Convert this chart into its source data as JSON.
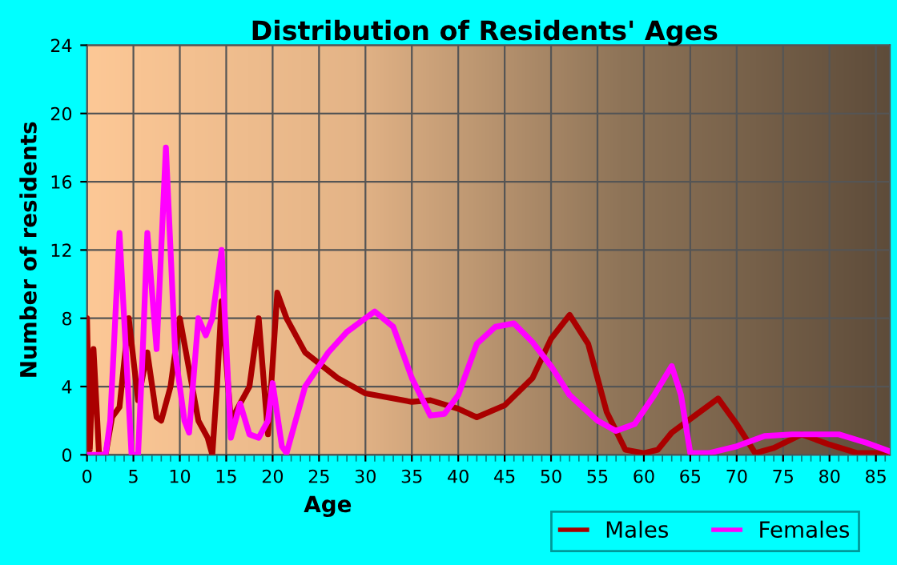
{
  "chart_data": {
    "type": "line",
    "title": "Distribution of Residents' Ages",
    "xlabel": "Age",
    "ylabel": "Number of residents",
    "xlim": [
      0,
      86.5
    ],
    "xticks": [
      0,
      5,
      10,
      15,
      20,
      25,
      30,
      35,
      40,
      45,
      50,
      55,
      60,
      65,
      70,
      75,
      80,
      85
    ],
    "ylim": [
      0,
      24
    ],
    "yticks": [
      0,
      4,
      8,
      12,
      16,
      20,
      24
    ],
    "grid": true,
    "legend": "bottom right",
    "line_style": "solid",
    "series": [
      {
        "name": "Males",
        "color": "#aa0000",
        "x": [
          0,
          0.3,
          0.7,
          1.3,
          2,
          2.7,
          3.5,
          4.5,
          5.5,
          6.5,
          7.5,
          8,
          9,
          10,
          11,
          12,
          13,
          13.5,
          14,
          14.5,
          15.5,
          16.5,
          17.5,
          18.5,
          19.5,
          20.5,
          21.5,
          23.5,
          27,
          30,
          35,
          37,
          40,
          42,
          45,
          48,
          50,
          52,
          54,
          56,
          58,
          60,
          61.5,
          63,
          66,
          68,
          70,
          72,
          74,
          77,
          80,
          83,
          86.5
        ],
        "values": [
          8,
          0.3,
          6.2,
          0,
          0,
          2.2,
          2.8,
          8,
          3.2,
          6,
          2.2,
          2,
          4,
          8,
          5,
          2,
          1,
          0,
          4,
          9,
          2,
          3,
          4,
          8,
          1.2,
          9.5,
          8,
          6,
          4.5,
          3.6,
          3.1,
          3.2,
          2.7,
          2.2,
          2.9,
          4.5,
          6.8,
          8.2,
          6.5,
          2.5,
          0.3,
          0.1,
          0.3,
          1.3,
          2.5,
          3.3,
          1.8,
          0.1,
          0.4,
          1.2,
          0.6,
          0.1,
          0.1
        ]
      },
      {
        "name": "Females",
        "color": "#ff00ff",
        "x": [
          0,
          2,
          2.5,
          3.5,
          4.5,
          4.8,
          5.5,
          6,
          6.5,
          7.5,
          8.5,
          9.5,
          10.5,
          11,
          12,
          12.8,
          13.5,
          14.5,
          15.5,
          16.5,
          17.5,
          18.5,
          19.5,
          20,
          21,
          21.5,
          23.5,
          26,
          28,
          31,
          33,
          35,
          37,
          38.5,
          40,
          42,
          44,
          46,
          48,
          50,
          52,
          55,
          57,
          59,
          61,
          63,
          64,
          65,
          67,
          70,
          73,
          76,
          81,
          84,
          86.5
        ],
        "values": [
          0,
          0,
          2,
          13,
          3,
          0,
          0,
          6,
          13,
          6.2,
          18,
          6,
          2,
          1.3,
          8,
          7,
          8,
          12,
          1,
          3,
          1.2,
          1,
          2,
          4.2,
          0.5,
          0.1,
          4,
          6,
          7.2,
          8.4,
          7.5,
          4.5,
          2.3,
          2.4,
          3.5,
          6.5,
          7.5,
          7.7,
          6.6,
          5.2,
          3.5,
          2,
          1.4,
          1.8,
          3.4,
          5.2,
          3.5,
          0.1,
          0.1,
          0.5,
          1.1,
          1.2,
          1.2,
          0.7,
          0.2
        ]
      }
    ]
  }
}
